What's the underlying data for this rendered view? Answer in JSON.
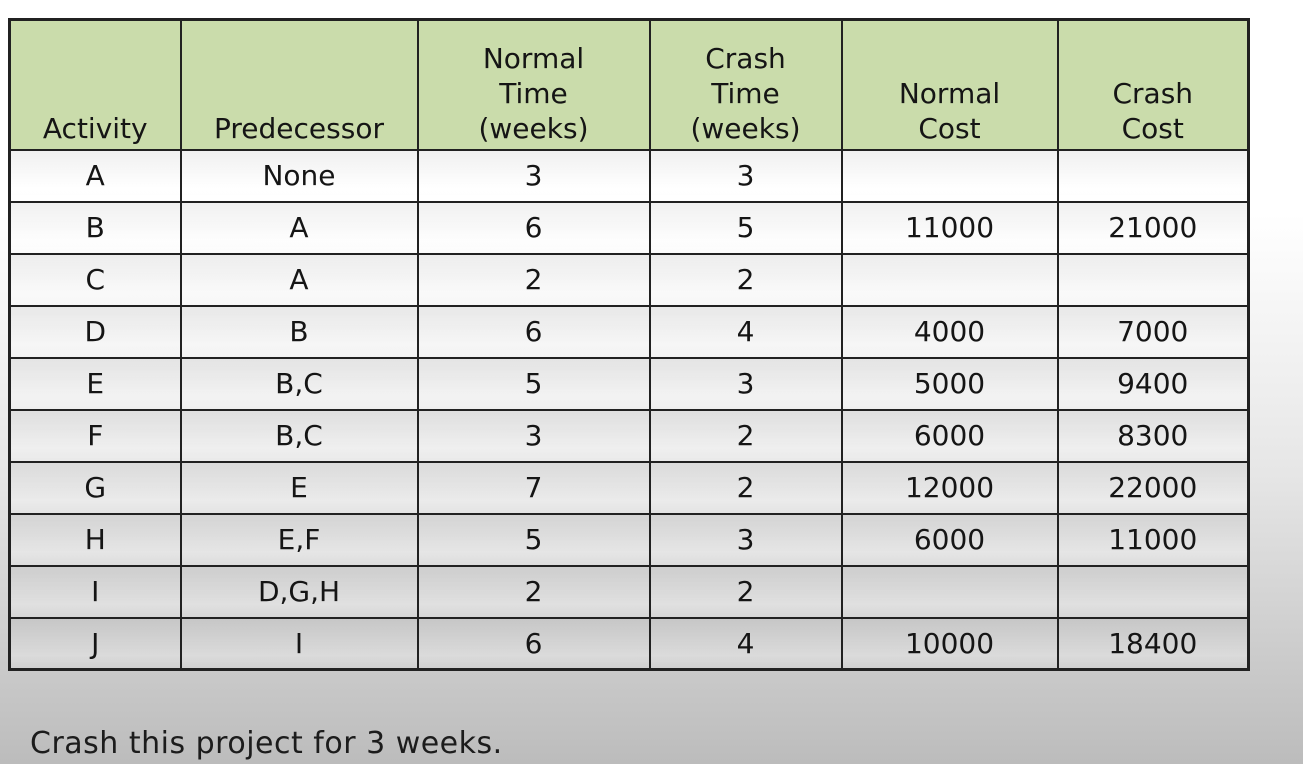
{
  "colors": {
    "header_bg": "#cadcab",
    "border": "#212121",
    "text": "#151515",
    "bg_top": "#ffffff",
    "bg_bottom": "#bcbcbc"
  },
  "chart_data": {
    "type": "table",
    "title": "",
    "columns": [
      "Activity",
      "Predecessor",
      "Normal\nTime\n(weeks)",
      "Crash\nTime\n(weeks)",
      "Normal\nCost",
      "Crash\nCost"
    ],
    "rows": [
      [
        "A",
        "None",
        "3",
        "3",
        "",
        ""
      ],
      [
        "B",
        "A",
        "6",
        "5",
        "11000",
        "21000"
      ],
      [
        "C",
        "A",
        "2",
        "2",
        "",
        ""
      ],
      [
        "D",
        "B",
        "6",
        "4",
        "4000",
        "7000"
      ],
      [
        "E",
        "B,C",
        "5",
        "3",
        "5000",
        "9400"
      ],
      [
        "F",
        "B,C",
        "3",
        "2",
        "6000",
        "8300"
      ],
      [
        "G",
        "E",
        "7",
        "2",
        "12000",
        "22000"
      ],
      [
        "H",
        "E,F",
        "5",
        "3",
        "6000",
        "11000"
      ],
      [
        "I",
        "D,G,H",
        "2",
        "2",
        "",
        ""
      ],
      [
        "J",
        "I",
        "6",
        "4",
        "10000",
        "18400"
      ]
    ],
    "caption": "Crash this project for 3 weeks."
  }
}
